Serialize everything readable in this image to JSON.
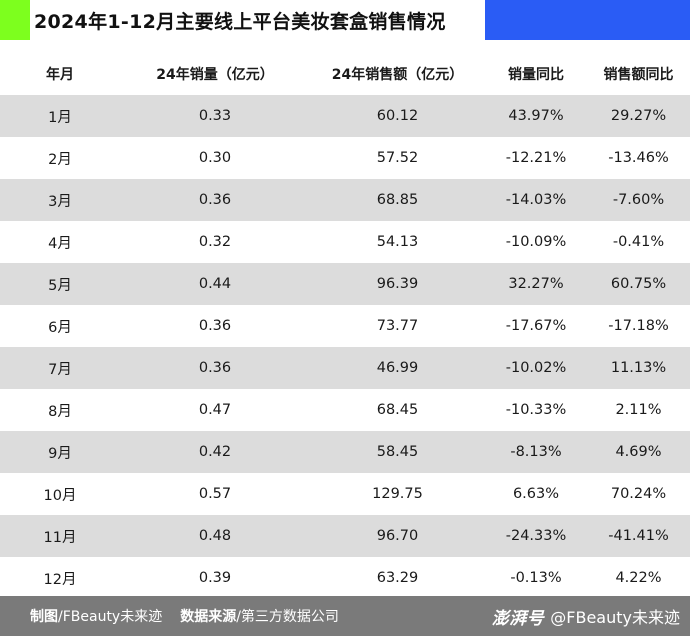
{
  "title": "2024年1-12月主要线上平台美妆套盒销售情况",
  "colors": {
    "accent_green": "#7dff1e",
    "accent_blue": "#2a5cf5",
    "row_shade": "#dcdcdc",
    "footer_bg": "#7a7a7a"
  },
  "table": {
    "headers": [
      "年月",
      "24年销量（亿元）",
      "24年销售额（亿元）",
      "销量同比",
      "销售额同比"
    ],
    "rows": [
      [
        "1月",
        "0.33",
        "60.12",
        "43.97%",
        "29.27%"
      ],
      [
        "2月",
        "0.30",
        "57.52",
        "-12.21%",
        "-13.46%"
      ],
      [
        "3月",
        "0.36",
        "68.85",
        "-14.03%",
        "-7.60%"
      ],
      [
        "4月",
        "0.32",
        "54.13",
        "-10.09%",
        "-0.41%"
      ],
      [
        "5月",
        "0.44",
        "96.39",
        "32.27%",
        "60.75%"
      ],
      [
        "6月",
        "0.36",
        "73.77",
        "-17.67%",
        "-17.18%"
      ],
      [
        "7月",
        "0.36",
        "46.99",
        "-10.02%",
        "11.13%"
      ],
      [
        "8月",
        "0.47",
        "68.45",
        "-10.33%",
        "2.11%"
      ],
      [
        "9月",
        "0.42",
        "58.45",
        "-8.13%",
        "4.69%"
      ],
      [
        "10月",
        "0.57",
        "129.75",
        "6.63%",
        "70.24%"
      ],
      [
        "11月",
        "0.48",
        "96.70",
        "-24.33%",
        "-41.41%"
      ],
      [
        "12月",
        "0.39",
        "63.29",
        "-0.13%",
        "4.22%"
      ]
    ]
  },
  "footer": {
    "made_by_label": "制图",
    "made_by_value": "/FBeauty未来迹",
    "source_label": "数据来源",
    "source_value": "/第三方数据公司",
    "brand": "澎湃号",
    "account": "@FBeauty未来迹"
  }
}
